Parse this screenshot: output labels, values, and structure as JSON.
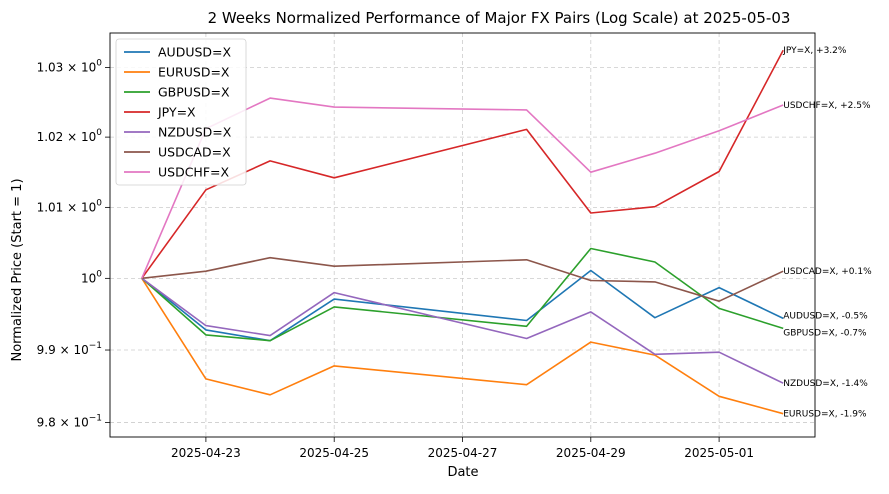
{
  "chart_data": {
    "type": "line",
    "title": "2 Weeks Normalized Performance of Major FX Pairs (Log Scale) at 2025-05-03",
    "xlabel": "Date",
    "ylabel": "Normalized Price (Start = 1)",
    "y_scale": "log",
    "grid": true,
    "legend_position": "top-left",
    "ylim": [
      0.978,
      1.035
    ],
    "xlim": [
      "2025-04-21",
      "2025-05-02"
    ],
    "x": [
      "2025-04-22",
      "2025-04-23",
      "2025-04-24",
      "2025-04-25",
      "2025-04-28",
      "2025-04-29",
      "2025-04-30",
      "2025-05-01",
      "2025-05-02"
    ],
    "x_ticks": [
      "2025-04-23",
      "2025-04-25",
      "2025-04-27",
      "2025-04-29",
      "2025-05-01"
    ],
    "y_ticks": [
      {
        "value": 0.98,
        "label_base": "9.8 × 10",
        "label_exp": "−1"
      },
      {
        "value": 0.99,
        "label_base": "9.9 × 10",
        "label_exp": "−1"
      },
      {
        "value": 1.0,
        "label_base": "10",
        "label_exp": "0"
      },
      {
        "value": 1.01,
        "label_base": "1.01 × 10",
        "label_exp": "0"
      },
      {
        "value": 1.02,
        "label_base": "1.02 × 10",
        "label_exp": "0"
      },
      {
        "value": 1.03,
        "label_base": "1.03 × 10",
        "label_exp": "0"
      }
    ],
    "series": [
      {
        "name": "AUDUSD=X",
        "color": "#1f77b4",
        "values": [
          1.0,
          0.9928,
          0.9913,
          0.9971,
          0.9941,
          1.0011,
          0.9945,
          0.9987,
          0.9944
        ],
        "end_label": "AUDUSD=X, -0.5%"
      },
      {
        "name": "EURUSD=X",
        "color": "#ff7f0e",
        "values": [
          1.0,
          0.986,
          0.9838,
          0.9878,
          0.9852,
          0.9911,
          0.9893,
          0.9836,
          0.9812
        ],
        "end_label": "EURUSD=X, -1.9%"
      },
      {
        "name": "GBPUSD=X",
        "color": "#2ca02c",
        "values": [
          1.0,
          0.9921,
          0.9913,
          0.996,
          0.9933,
          1.0042,
          1.0023,
          0.9958,
          0.993
        ],
        "end_label": "GBPUSD=X, -0.7%"
      },
      {
        "name": "JPY=X",
        "color": "#d62728",
        "values": [
          1.0,
          1.0125,
          1.0166,
          1.0142,
          1.0211,
          1.0092,
          1.0101,
          1.0151,
          1.0325
        ],
        "end_label": "JPY=X, +3.2%"
      },
      {
        "name": "NZDUSD=X",
        "color": "#9467bd",
        "values": [
          1.0,
          0.9934,
          0.992,
          0.998,
          0.9916,
          0.9953,
          0.9894,
          0.9897,
          0.9854
        ],
        "end_label": "NZDUSD=X, -1.4%"
      },
      {
        "name": "USDCAD=X",
        "color": "#8c564b",
        "values": [
          1.0,
          1.001,
          1.0029,
          1.0017,
          1.0026,
          0.9997,
          0.9995,
          0.9968,
          1.001
        ],
        "end_label": "USDCAD=X, +0.1%"
      },
      {
        "name": "USDCHF=X",
        "color": "#e377c2",
        "values": [
          1.0,
          1.0212,
          1.0256,
          1.0243,
          1.0239,
          1.015,
          1.0177,
          1.0209,
          1.0246
        ],
        "end_label": "USDCHF=X, +2.5%"
      }
    ]
  }
}
